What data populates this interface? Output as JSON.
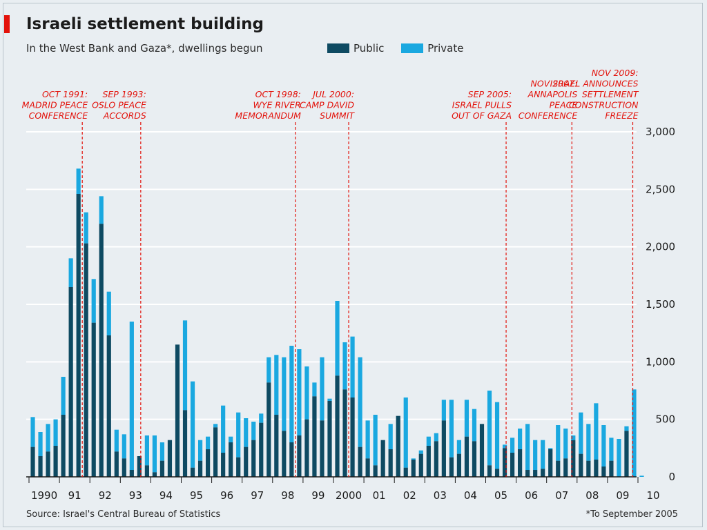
{
  "colors": {
    "background": "#e9eef2",
    "public": "#0e4a62",
    "private": "#1aa8e0",
    "event": "#e3120b",
    "grid": "#ffffff",
    "text": "#1b1b1b"
  },
  "header": {
    "title": "Israeli settlement building",
    "subtitle": "In the West Bank and Gaza*, dwellings begun"
  },
  "legend": {
    "public": "Public",
    "private": "Private"
  },
  "source": "Source: Israel's Central Bureau of Statistics",
  "footnote": "*To September 2005",
  "chart_data": {
    "type": "bar",
    "stacked": true,
    "frequency": "quarterly",
    "x_start": "1990 Q1",
    "x_end": "2010 Q1",
    "ylim": [
      0,
      3000
    ],
    "yticks": [
      0,
      500,
      1000,
      1500,
      2000,
      2500,
      3000
    ],
    "ytick_labels": [
      "0",
      "500",
      "1,000",
      "1,500",
      "2,000",
      "2,500",
      "3,000"
    ],
    "y_axis_side": "right",
    "grid": true,
    "legend_position": "top",
    "xtick_labels": [
      "1990",
      "91",
      "92",
      "93",
      "94",
      "95",
      "96",
      "97",
      "98",
      "99",
      "2000",
      "01",
      "02",
      "03",
      "04",
      "05",
      "06",
      "07",
      "08",
      "09",
      "10"
    ],
    "series": [
      {
        "name": "Public",
        "values": [
          260,
          180,
          220,
          270,
          540,
          1650,
          2460,
          2030,
          1340,
          2200,
          1230,
          220,
          160,
          60,
          180,
          100,
          40,
          140,
          320,
          1150,
          580,
          80,
          140,
          240,
          430,
          210,
          300,
          170,
          260,
          320,
          470,
          820,
          540,
          400,
          300,
          360,
          500,
          700,
          490,
          660,
          880,
          760,
          690,
          260,
          160,
          100,
          320,
          240,
          530,
          80,
          150,
          200,
          270,
          310,
          490,
          170,
          200,
          350,
          310,
          460,
          100,
          70,
          250,
          210,
          240,
          60,
          60,
          70,
          240,
          140,
          160,
          320,
          200,
          140,
          150,
          90,
          140,
          0,
          400,
          0,
          0
        ],
        "totals": [
          520,
          390,
          460,
          500,
          870,
          1900,
          2680,
          2300,
          1720,
          2440,
          1610,
          410,
          370,
          1350,
          150,
          360,
          360,
          300,
          260,
          400,
          1360,
          830,
          320,
          350,
          460,
          620,
          350,
          560,
          510,
          480,
          550,
          1040,
          1060,
          1040,
          1140,
          1110,
          960,
          820,
          1040,
          680,
          1530,
          1170,
          1220,
          1040,
          490,
          540,
          200,
          460,
          480,
          690,
          160,
          230,
          350,
          380,
          670,
          670,
          320,
          670,
          590,
          370,
          750,
          650,
          280,
          340,
          420,
          460,
          320,
          320,
          250,
          450,
          420,
          360,
          560,
          460,
          640,
          450,
          340,
          330,
          440,
          760,
          10
        ]
      },
      {
        "name": "Private",
        "values": [
          260,
          210,
          240,
          230,
          330,
          250,
          220,
          270,
          380,
          240,
          380,
          190,
          210,
          1290,
          -30,
          260,
          320,
          160,
          -60,
          250,
          780,
          750,
          180,
          110,
          30,
          410,
          50,
          390,
          250,
          160,
          80,
          220,
          520,
          640,
          840,
          750,
          460,
          120,
          550,
          20,
          650,
          410,
          530,
          780,
          330,
          440,
          -120,
          220,
          -50,
          610,
          10,
          30,
          80,
          70,
          180,
          500,
          120,
          320,
          280,
          -90,
          650,
          580,
          30,
          130,
          180,
          400,
          260,
          250,
          10,
          310,
          260,
          40,
          360,
          320,
          490,
          360,
          200,
          330,
          40,
          760,
          10
        ]
      }
    ],
    "events": [
      {
        "date": 1991.75,
        "label": "OCT 1991:\nMADRID PEACE\nCONFERENCE"
      },
      {
        "date": 1993.67,
        "label": "SEP 1993:\nOSLO PEACE\nACCORDS"
      },
      {
        "date": 1998.75,
        "label": "OCT 1998:\nWYE RIVER\nMEMORANDUM"
      },
      {
        "date": 2000.5,
        "label": "JUL 2000:\nCAMP DAVID\nSUMMIT"
      },
      {
        "date": 2005.67,
        "label": "SEP 2005:\nISRAEL PULLS\nOUT OF GAZA"
      },
      {
        "date": 2007.83,
        "label": "NOV 2007:\nANNAPOLIS\nPEACE\nCONFERENCE"
      },
      {
        "date": 2009.83,
        "label": "NOV 2009:\nISRAEL ANNOUNCES\nSETTLEMENT\nCONSTRUCTION\nFREEZE"
      }
    ]
  }
}
